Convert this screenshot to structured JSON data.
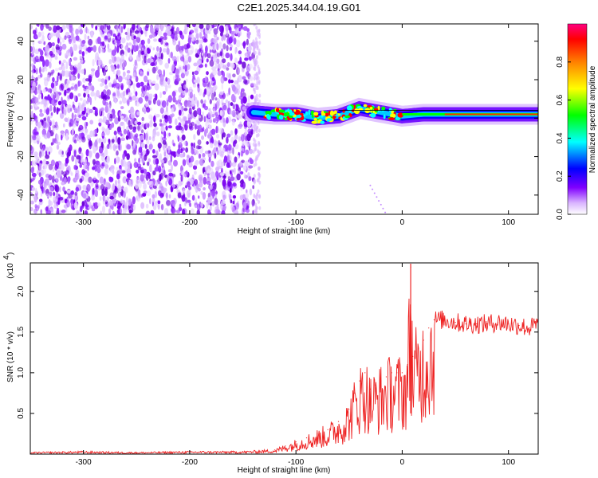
{
  "title": "C2E1.2025.344.04.19.G01",
  "chart_data": [
    {
      "type": "heatmap",
      "name": "spectrogram",
      "xlabel": "Height of straight line (km)",
      "ylabel": "Frequency (Hz)",
      "xlim": [
        -350,
        128
      ],
      "ylim": [
        -50,
        49
      ],
      "xticks": [
        -300,
        -200,
        -100,
        0,
        100
      ],
      "yticks": [
        -40,
        -20,
        0,
        20,
        40
      ],
      "colorbar": {
        "label": "Normalized spectral amplitude",
        "range": [
          0,
          1
        ],
        "ticks": [
          "0.0",
          "0.2",
          "0.4",
          "0.6",
          "0.8"
        ],
        "colors": [
          "#ffffff",
          "#d9b3ff",
          "#8000ff",
          "#0000ff",
          "#00ffff",
          "#00ff00",
          "#ffff00",
          "#ff8000",
          "#ff0000",
          "#ff0080"
        ]
      },
      "noise_region_km": [
        -350,
        -140
      ],
      "signal_track": {
        "x": [
          -140,
          -120,
          -100,
          -80,
          -60,
          -40,
          -20,
          0,
          20,
          40,
          60,
          80,
          100,
          128
        ],
        "freq": [
          3,
          2,
          2,
          0,
          1,
          5,
          3,
          1,
          2,
          2,
          2,
          2,
          2,
          2
        ]
      }
    },
    {
      "type": "line",
      "name": "snr",
      "xlabel": "Height of straight line (km)",
      "ylabel": "SNR (10 * v/v)",
      "yscale_label": "(x10",
      "yscale_exp": "4",
      "xlim": [
        -350,
        128
      ],
      "ylim": [
        0,
        2.35
      ],
      "xticks": [
        -300,
        -200,
        -100,
        0,
        100
      ],
      "yticks": [
        "0.5",
        "1.0",
        "1.5",
        "2.0"
      ],
      "color": "#ee2222",
      "x": [
        -350,
        -300,
        -250,
        -200,
        -150,
        -120,
        -110,
        -100,
        -90,
        -80,
        -70,
        -60,
        -50,
        -45,
        -40,
        -35,
        -30,
        -25,
        -20,
        -15,
        -10,
        -5,
        0,
        5,
        8,
        10,
        15,
        20,
        25,
        30,
        40,
        50,
        60,
        70,
        80,
        90,
        100,
        110,
        120,
        128
      ],
      "y": [
        0.02,
        0.03,
        0.02,
        0.03,
        0.03,
        0.05,
        0.1,
        0.15,
        0.2,
        0.25,
        0.3,
        0.4,
        0.55,
        0.75,
        0.9,
        1.0,
        0.8,
        0.85,
        0.9,
        0.95,
        1.0,
        1.0,
        1.0,
        1.1,
        2.3,
        1.2,
        1.3,
        1.4,
        1.55,
        1.65,
        1.65,
        1.62,
        1.6,
        1.6,
        1.6,
        1.62,
        1.6,
        1.58,
        1.55,
        1.6
      ]
    }
  ]
}
